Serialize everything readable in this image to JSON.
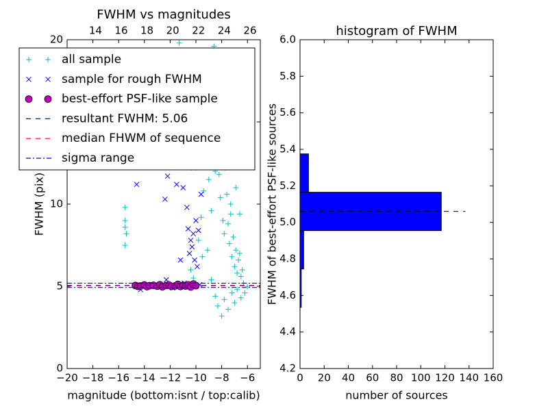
{
  "chart_data": [
    {
      "type": "scatter",
      "title": "FWHM vs magnitudes",
      "xlabel": "magnitude (bottom:isnt / top:calib)",
      "ylabel": "FWHM (pix)",
      "xlim": [
        -20,
        -5
      ],
      "ylim": [
        0,
        20
      ],
      "xticks": [
        {
          "value": -20,
          "label": "−20"
        },
        {
          "value": -18,
          "label": "−18"
        },
        {
          "value": -16,
          "label": "−16"
        },
        {
          "value": -14,
          "label": "−14"
        },
        {
          "value": -12,
          "label": "−12"
        },
        {
          "value": -10,
          "label": "−10"
        },
        {
          "value": -8,
          "label": "−8"
        },
        {
          "value": -6,
          "label": "−6"
        }
      ],
      "yticks": [
        0,
        5,
        10,
        15,
        20
      ],
      "x2lim": [
        11.8,
        26.8
      ],
      "x2ticks": [
        14,
        16,
        18,
        20,
        22,
        24,
        26
      ],
      "series": [
        {
          "name": "all sample",
          "color": "#00bfbf",
          "marker": "plus",
          "x": [
            -15.5,
            -15.5,
            -15.5,
            -15.4,
            -15.5,
            -10.4,
            -10.2,
            -10.0,
            -9.8,
            -9.6,
            -9.4,
            -9.2,
            -9.0,
            -8.9,
            -8.8,
            -8.7,
            -8.6,
            -8.5,
            -8.4,
            -8.3,
            -8.2,
            -8.1,
            -8.0,
            -7.9,
            -7.8,
            -7.7,
            -7.6,
            -7.5,
            -7.4,
            -7.3,
            -7.2,
            -7.1,
            -7.0,
            -6.9,
            -6.8,
            -6.7,
            -6.6,
            -6.5,
            -6.4,
            -6.3,
            -8.5,
            -8.3,
            -8.0,
            -7.8,
            -7.5,
            -7.2,
            -7.0,
            -6.8,
            -6.5,
            -8.8,
            -9.1,
            -8.6,
            -8.2,
            -7.6,
            -7.3,
            -6.9,
            -6.6,
            -8.1,
            -7.7,
            -9.5,
            -8.4,
            -7.9,
            -6.2,
            -6.0,
            -11.3
          ],
          "values": [
            9.8,
            9.0,
            8.6,
            8.2,
            7.5,
            6.0,
            5.5,
            5.2,
            7.8,
            9.2,
            10.8,
            12.6,
            11.5,
            13.2,
            9.6,
            14.8,
            13.0,
            12.0,
            14.5,
            16.0,
            11.8,
            10.4,
            13.4,
            9.0,
            8.2,
            12.2,
            10.6,
            8.8,
            7.6,
            9.4,
            6.8,
            8.0,
            6.2,
            7.2,
            5.8,
            6.6,
            7.0,
            5.6,
            6.0,
            5.2,
            4.4,
            3.8,
            3.2,
            4.2,
            3.6,
            4.6,
            4.0,
            4.8,
            4.3,
            5.4,
            7.2,
            19.6,
            18.2,
            12.5,
            10.0,
            11.0,
            9.4,
            15.2,
            14.0,
            6.8,
            17.0,
            13.6,
            4.6,
            5.0,
            19.8
          ]
        },
        {
          "name": "sample for rough FWHM",
          "color": "#0000ff",
          "marker": "x",
          "x": [
            -14.6,
            -12.4,
            -12.2,
            -11.5,
            -11.2,
            -12.3,
            -10.6,
            -10.4,
            -10.2,
            -10.0,
            -9.9,
            -10.5,
            -10.3,
            -10.1,
            -9.8,
            -10.7,
            -11.0,
            -9.6,
            -10.2,
            -14.3,
            -13.0,
            -11.8,
            -10.9,
            -10.0,
            -9.7
          ],
          "values": [
            11.2,
            10.3,
            11.7,
            11.2,
            6.6,
            5.4,
            8.5,
            7.8,
            8.2,
            9.0,
            6.2,
            7.0,
            7.4,
            6.6,
            8.4,
            9.8,
            11.0,
            10.6,
            12.2,
            4.8,
            5.1,
            4.9,
            5.2,
            5.0,
            5.1
          ]
        },
        {
          "name": "best-effort PSF-like sample",
          "color": "#bf00bf",
          "marker": "circle",
          "x": [
            -14.7,
            -14.5,
            -14.3,
            -14.0,
            -13.8,
            -13.6,
            -13.3,
            -13.0,
            -12.8,
            -12.6,
            -12.3,
            -12.1,
            -11.9,
            -11.6,
            -11.4,
            -11.2,
            -11.0,
            -10.8,
            -10.6,
            -10.4,
            -10.2,
            -10.0
          ],
          "values": [
            5.05,
            5.0,
            5.02,
            5.08,
            4.98,
            5.04,
            5.06,
            5.01,
            5.1,
            4.97,
            5.05,
            5.08,
            5.0,
            5.03,
            5.12,
            4.99,
            5.06,
            5.02,
            5.09,
            4.96,
            5.14,
            5.04
          ]
        },
        {
          "name": "resultant FWHM: 5.06",
          "color": "#0000ff",
          "marker": "hline",
          "style": "dashed",
          "values": [
            5.06
          ]
        },
        {
          "name": "median FHWM of sequence",
          "color": "#ff0000",
          "marker": "hline",
          "style": "dashed",
          "values": [
            5.04
          ]
        },
        {
          "name": "sigma range",
          "color": "#0000ff",
          "marker": "hline",
          "style": "dashdot",
          "values": [
            4.93,
            5.19
          ]
        }
      ]
    },
    {
      "type": "hbar_histogram",
      "title": "histogram of FWHM",
      "xlabel": "number of sources",
      "ylabel": "FWHM of best-effort PSF-like sources",
      "xlim": [
        0,
        160
      ],
      "ylim": [
        4.2,
        6.0
      ],
      "xticks": [
        0,
        20,
        40,
        60,
        80,
        100,
        120,
        140,
        160
      ],
      "yticks": [
        4.2,
        4.4,
        4.6,
        4.8,
        {
          "value": 5,
          "label": "5.0"
        },
        5.2,
        5.4,
        5.6,
        5.8,
        {
          "value": 6,
          "label": "6.0"
        }
      ],
      "bins": [
        4.535,
        4.745,
        4.955,
        5.165,
        5.375
      ],
      "values": [
        1,
        3,
        117,
        7
      ],
      "color": "#0000ff",
      "line_value": 5.06,
      "line_xmax": 137
    }
  ]
}
